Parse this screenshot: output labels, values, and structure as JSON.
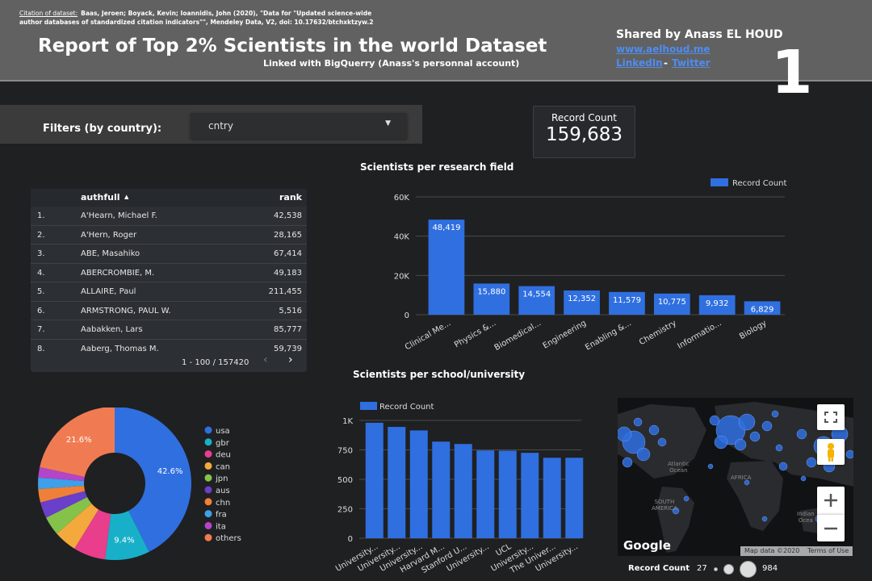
{
  "header": {
    "citation_label": "Citation of dataset:",
    "citation_text": "Baas, Jeroen; Boyack, Kevin; Ioannidis, John (2020), \"Data for \"Updated science-wide author databases of standardized citation indicators\"\", Mendeley Data, V2, doi: 10.17632/btchxktzyw.2",
    "title": "Report of Top 2% Scientists in the world Dataset",
    "subtitle": "Linked with BigQuerry (Anass's personnal account)",
    "shared_by": "Shared by Anass EL HOUD",
    "website": "www.aelhoud.me",
    "linkedin": "LinkedIn",
    "separator": "-",
    "twitter": "Twitter",
    "page_number": "1"
  },
  "filters": {
    "label": "Filters (by country):",
    "country_select_value": "cntry"
  },
  "scorecard": {
    "label": "Record Count",
    "value": "159,683"
  },
  "table": {
    "col_name": "authfull",
    "col_rank": "rank",
    "sort_indicator": "▲",
    "rows": [
      {
        "idx": "1.",
        "name": "A'Hearn, Michael F.",
        "rank": "42,538"
      },
      {
        "idx": "2.",
        "name": "A'Hern, Roger",
        "rank": "28,165"
      },
      {
        "idx": "3.",
        "name": "ABE, Masahiko",
        "rank": "67,414"
      },
      {
        "idx": "4.",
        "name": "ABERCROMBIE, M.",
        "rank": "49,183"
      },
      {
        "idx": "5.",
        "name": "ALLAIRE, Paul",
        "rank": "211,455"
      },
      {
        "idx": "6.",
        "name": "ARMSTRONG, PAUL W.",
        "rank": "5,516"
      },
      {
        "idx": "7.",
        "name": "Aabakken, Lars",
        "rank": "85,777"
      },
      {
        "idx": "8.",
        "name": "Aaberg, Thomas M.",
        "rank": "59,739"
      }
    ],
    "pagination": "1 - 100 / 157420",
    "prev_icon": "‹",
    "next_icon": "›"
  },
  "map": {
    "logo": "Google",
    "data_credit": "Map data ©2020",
    "terms": "Terms of Use",
    "labels": {
      "atlantic": "Atlantic\nOcean",
      "africa": "AFRICA",
      "south_america": "SOUTH\nAMERICA",
      "indian": "Indian\nOcea"
    },
    "legend_title": "Record Count",
    "legend_min": "27",
    "legend_max": "984"
  },
  "chart_data": [
    {
      "type": "bar",
      "title": "Scientists per research field",
      "legend": "Record Count",
      "categories": [
        "Clinical Me...",
        "Physics &...",
        "Biomedical...",
        "Engineering",
        "Enabling &...",
        "Chemistry",
        "Informatio...",
        "Biology"
      ],
      "values": [
        48419,
        15880,
        14554,
        12352,
        11579,
        10775,
        9932,
        6829
      ],
      "value_labels": [
        "48,419",
        "15,880",
        "14,554",
        "12,352",
        "11,579",
        "10,775",
        "9,932",
        "6,829"
      ],
      "yticks": [
        "0",
        "20K",
        "40K",
        "60K"
      ],
      "ylim": [
        0,
        60000
      ],
      "color": "#2f6fe0"
    },
    {
      "type": "bar",
      "title": "Scientists per school/university",
      "legend": "Record Count",
      "categories": [
        "University...",
        "University...",
        "University...",
        "Harvard M...",
        "Stanford U...",
        "University...",
        "UCL",
        "University...",
        "The Univer...",
        "University..."
      ],
      "values": [
        980,
        945,
        915,
        820,
        800,
        745,
        743,
        725,
        683,
        683
      ],
      "yticks": [
        "0",
        "250",
        "500",
        "750",
        "1K"
      ],
      "ylim": [
        0,
        1000
      ],
      "color": "#2f6fe0"
    },
    {
      "type": "pie",
      "categories": [
        "usa",
        "gbr",
        "deu",
        "can",
        "jpn",
        "aus",
        "chn",
        "fra",
        "ita",
        "others"
      ],
      "values": [
        42.6,
        9.4,
        6.8,
        4.8,
        4.0,
        3.4,
        2.8,
        2.4,
        2.2,
        21.6
      ],
      "value_labels": {
        "usa": "42.6%",
        "gbr": "9.4%",
        "others": "21.6%"
      },
      "colors": [
        "#2f6fe0",
        "#18b0c8",
        "#e83e8c",
        "#f4a93c",
        "#84c24a",
        "#6a3fc9",
        "#f08037",
        "#3ea0e8",
        "#b345c8",
        "#f07b52"
      ]
    }
  ]
}
